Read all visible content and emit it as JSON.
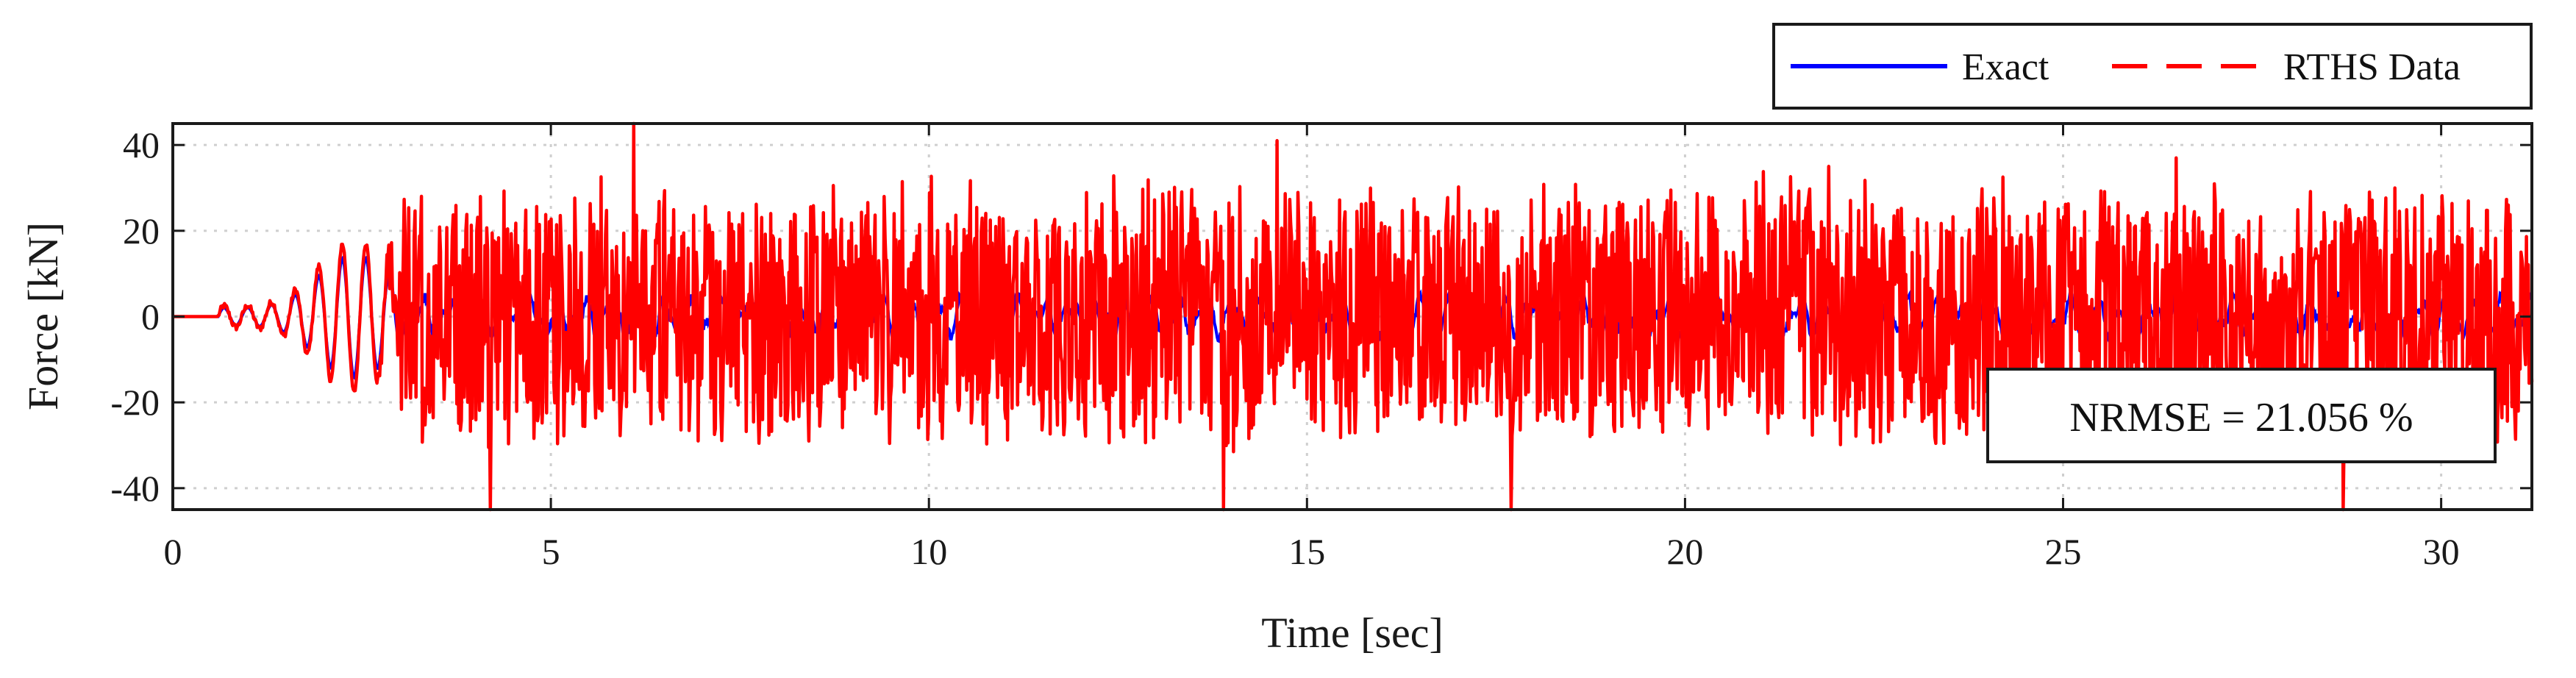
{
  "chart_data": {
    "type": "line",
    "xlabel": "Time [sec]",
    "ylabel": "Force [kN]",
    "xlim": [
      0,
      31.2
    ],
    "ylim": [
      -45,
      45
    ],
    "xticks": [
      0,
      5,
      10,
      15,
      20,
      25,
      30
    ],
    "yticks": [
      -40,
      -20,
      0,
      20,
      40
    ],
    "grid": "dotted",
    "legend_position": "top-right-outside",
    "annotation": "NRMSE = 21.056 %",
    "series": [
      {
        "name": "Exact",
        "color": "#0000ff",
        "style": "solid",
        "x": [
          0,
          0.6,
          0.9,
          1.2,
          1.5,
          1.8,
          2.1,
          2.4,
          2.7,
          3.0,
          5,
          10,
          15,
          20,
          25,
          30,
          31.2
        ],
        "y": [
          0,
          0,
          1.5,
          -1.5,
          3,
          -5,
          10,
          -6,
          5,
          -3,
          2,
          -2,
          3,
          -2,
          2,
          -1,
          0
        ]
      },
      {
        "name": "RTHS Data",
        "color": "#ff0000",
        "style": "dashed",
        "x": [
          0,
          0.6,
          0.9,
          1.2,
          1.5,
          1.8,
          2.1,
          2.4,
          2.7,
          3.0,
          5,
          10,
          15,
          20,
          25,
          30,
          31.2
        ],
        "y": [
          0,
          0,
          2,
          -2,
          4,
          -7,
          13,
          -8,
          7,
          -12,
          30,
          -30,
          32,
          -28,
          30,
          -30,
          15
        ],
        "envelope_after_3s": {
          "typical": 28,
          "peak": 45
        }
      }
    ]
  }
}
